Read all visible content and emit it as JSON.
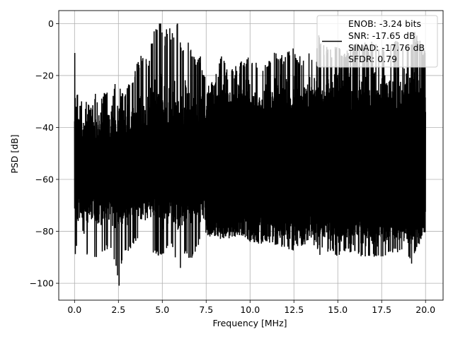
{
  "chart_data": {
    "type": "line",
    "title": "",
    "xlabel": "Frequency [MHz]",
    "ylabel": "PSD [dB]",
    "xlim": [
      -0.9,
      21.0
    ],
    "ylim": [
      -106.5,
      5.0
    ],
    "xticks": [
      0.0,
      2.5,
      5.0,
      7.5,
      10.0,
      12.5,
      15.0,
      17.5,
      20.0
    ],
    "xtick_labels": [
      "0.0",
      "2.5",
      "5.0",
      "7.5",
      "10.0",
      "12.5",
      "15.0",
      "17.5",
      "20.0"
    ],
    "yticks": [
      0,
      -20,
      -40,
      -60,
      -80,
      -100
    ],
    "ytick_labels": [
      "0",
      "−20",
      "−40",
      "−60",
      "−80",
      "−100"
    ],
    "grid": true,
    "legend_position": "top-right",
    "line_color": "#000000",
    "series": [
      {
        "name": "",
        "description_note": "",
        "x_range": [
          0.0,
          20.0
        ],
        "upper_envelope": [
          [
            0.0,
            -13
          ],
          [
            0.1,
            -27
          ],
          [
            0.3,
            -34
          ],
          [
            0.5,
            -33
          ],
          [
            0.8,
            -35
          ],
          [
            1.2,
            -30
          ],
          [
            1.5,
            -33
          ],
          [
            1.8,
            -27
          ],
          [
            2.0,
            -30
          ],
          [
            2.3,
            -27
          ],
          [
            2.5,
            -26
          ],
          [
            2.8,
            -30
          ],
          [
            3.0,
            -25
          ],
          [
            3.2,
            -28
          ],
          [
            3.5,
            -20
          ],
          [
            3.8,
            -16
          ],
          [
            4.0,
            -18
          ],
          [
            4.2,
            -17
          ],
          [
            4.5,
            -7
          ],
          [
            4.9,
            0
          ],
          [
            5.1,
            -10
          ],
          [
            5.3,
            -4
          ],
          [
            5.6,
            -8
          ],
          [
            5.9,
            -2
          ],
          [
            6.1,
            -14
          ],
          [
            6.3,
            -9
          ],
          [
            6.6,
            -12
          ],
          [
            6.9,
            -17
          ],
          [
            7.2,
            -16
          ],
          [
            7.5,
            -27
          ],
          [
            7.8,
            -26
          ],
          [
            8.1,
            -23
          ],
          [
            8.4,
            -15
          ],
          [
            8.7,
            -22
          ],
          [
            9.0,
            -19
          ],
          [
            9.3,
            -21
          ],
          [
            9.6,
            -17
          ],
          [
            10.0,
            -17
          ],
          [
            10.3,
            -18
          ],
          [
            10.6,
            -19
          ],
          [
            11.0,
            -20
          ],
          [
            11.3,
            -14
          ],
          [
            11.6,
            -15
          ],
          [
            12.0,
            -17
          ],
          [
            12.3,
            -12
          ],
          [
            12.6,
            -15
          ],
          [
            13.0,
            -17
          ],
          [
            13.4,
            -15
          ],
          [
            13.8,
            -15
          ],
          [
            13.9,
            -8
          ],
          [
            14.2,
            -12
          ],
          [
            14.6,
            -14
          ],
          [
            15.0,
            -12
          ],
          [
            15.5,
            -14
          ],
          [
            16.0,
            -11
          ],
          [
            16.3,
            -10
          ],
          [
            16.7,
            -12
          ],
          [
            17.0,
            -10
          ],
          [
            17.5,
            -13
          ],
          [
            18.0,
            -11
          ],
          [
            18.2,
            -9
          ],
          [
            18.6,
            -11
          ],
          [
            19.0,
            -10
          ],
          [
            19.4,
            -7
          ],
          [
            19.8,
            -12
          ],
          [
            20.0,
            -14
          ]
        ],
        "lower_envelope": [
          [
            0.0,
            -92
          ],
          [
            0.1,
            -83
          ],
          [
            0.3,
            -101
          ],
          [
            0.5,
            -95
          ],
          [
            0.8,
            -86
          ],
          [
            1.2,
            -89
          ],
          [
            1.5,
            -86
          ],
          [
            2.0,
            -85
          ],
          [
            2.4,
            -92
          ],
          [
            2.5,
            -102
          ],
          [
            2.8,
            -85
          ],
          [
            3.0,
            -87
          ],
          [
            3.5,
            -82
          ],
          [
            4.0,
            -83
          ],
          [
            4.5,
            -87
          ],
          [
            5.0,
            -88
          ],
          [
            5.5,
            -83
          ],
          [
            6.0,
            -94
          ],
          [
            6.3,
            -86
          ],
          [
            6.6,
            -90
          ],
          [
            7.0,
            -84
          ],
          [
            7.5,
            -79
          ],
          [
            8.0,
            -80
          ],
          [
            8.5,
            -82
          ],
          [
            9.0,
            -80
          ],
          [
            9.5,
            -80
          ],
          [
            10.0,
            -83
          ],
          [
            10.5,
            -83
          ],
          [
            11.0,
            -82
          ],
          [
            11.5,
            -84
          ],
          [
            12.0,
            -85
          ],
          [
            12.3,
            -86
          ],
          [
            12.6,
            -85
          ],
          [
            13.0,
            -84
          ],
          [
            13.4,
            -82
          ],
          [
            13.8,
            -85
          ],
          [
            14.1,
            -91
          ],
          [
            14.5,
            -85
          ],
          [
            15.0,
            -88
          ],
          [
            15.5,
            -86
          ],
          [
            16.0,
            -87
          ],
          [
            16.5,
            -88
          ],
          [
            17.0,
            -88
          ],
          [
            17.5,
            -88
          ],
          [
            18.0,
            -87
          ],
          [
            18.5,
            -86
          ],
          [
            18.9,
            -86
          ],
          [
            19.2,
            -91
          ],
          [
            19.6,
            -84
          ],
          [
            20.0,
            -77
          ]
        ],
        "center_band": [
          -45,
          -65
        ],
        "upper_band_from_7_5MHz": -35,
        "lower_band_from_7_5MHz": -76
      }
    ],
    "legend": {
      "entries": [
        "ENOB: -3.24 bits",
        "SNR: -17.65 dB",
        "SINAD: -17.76 dB",
        "SFDR: 0.79"
      ]
    }
  }
}
